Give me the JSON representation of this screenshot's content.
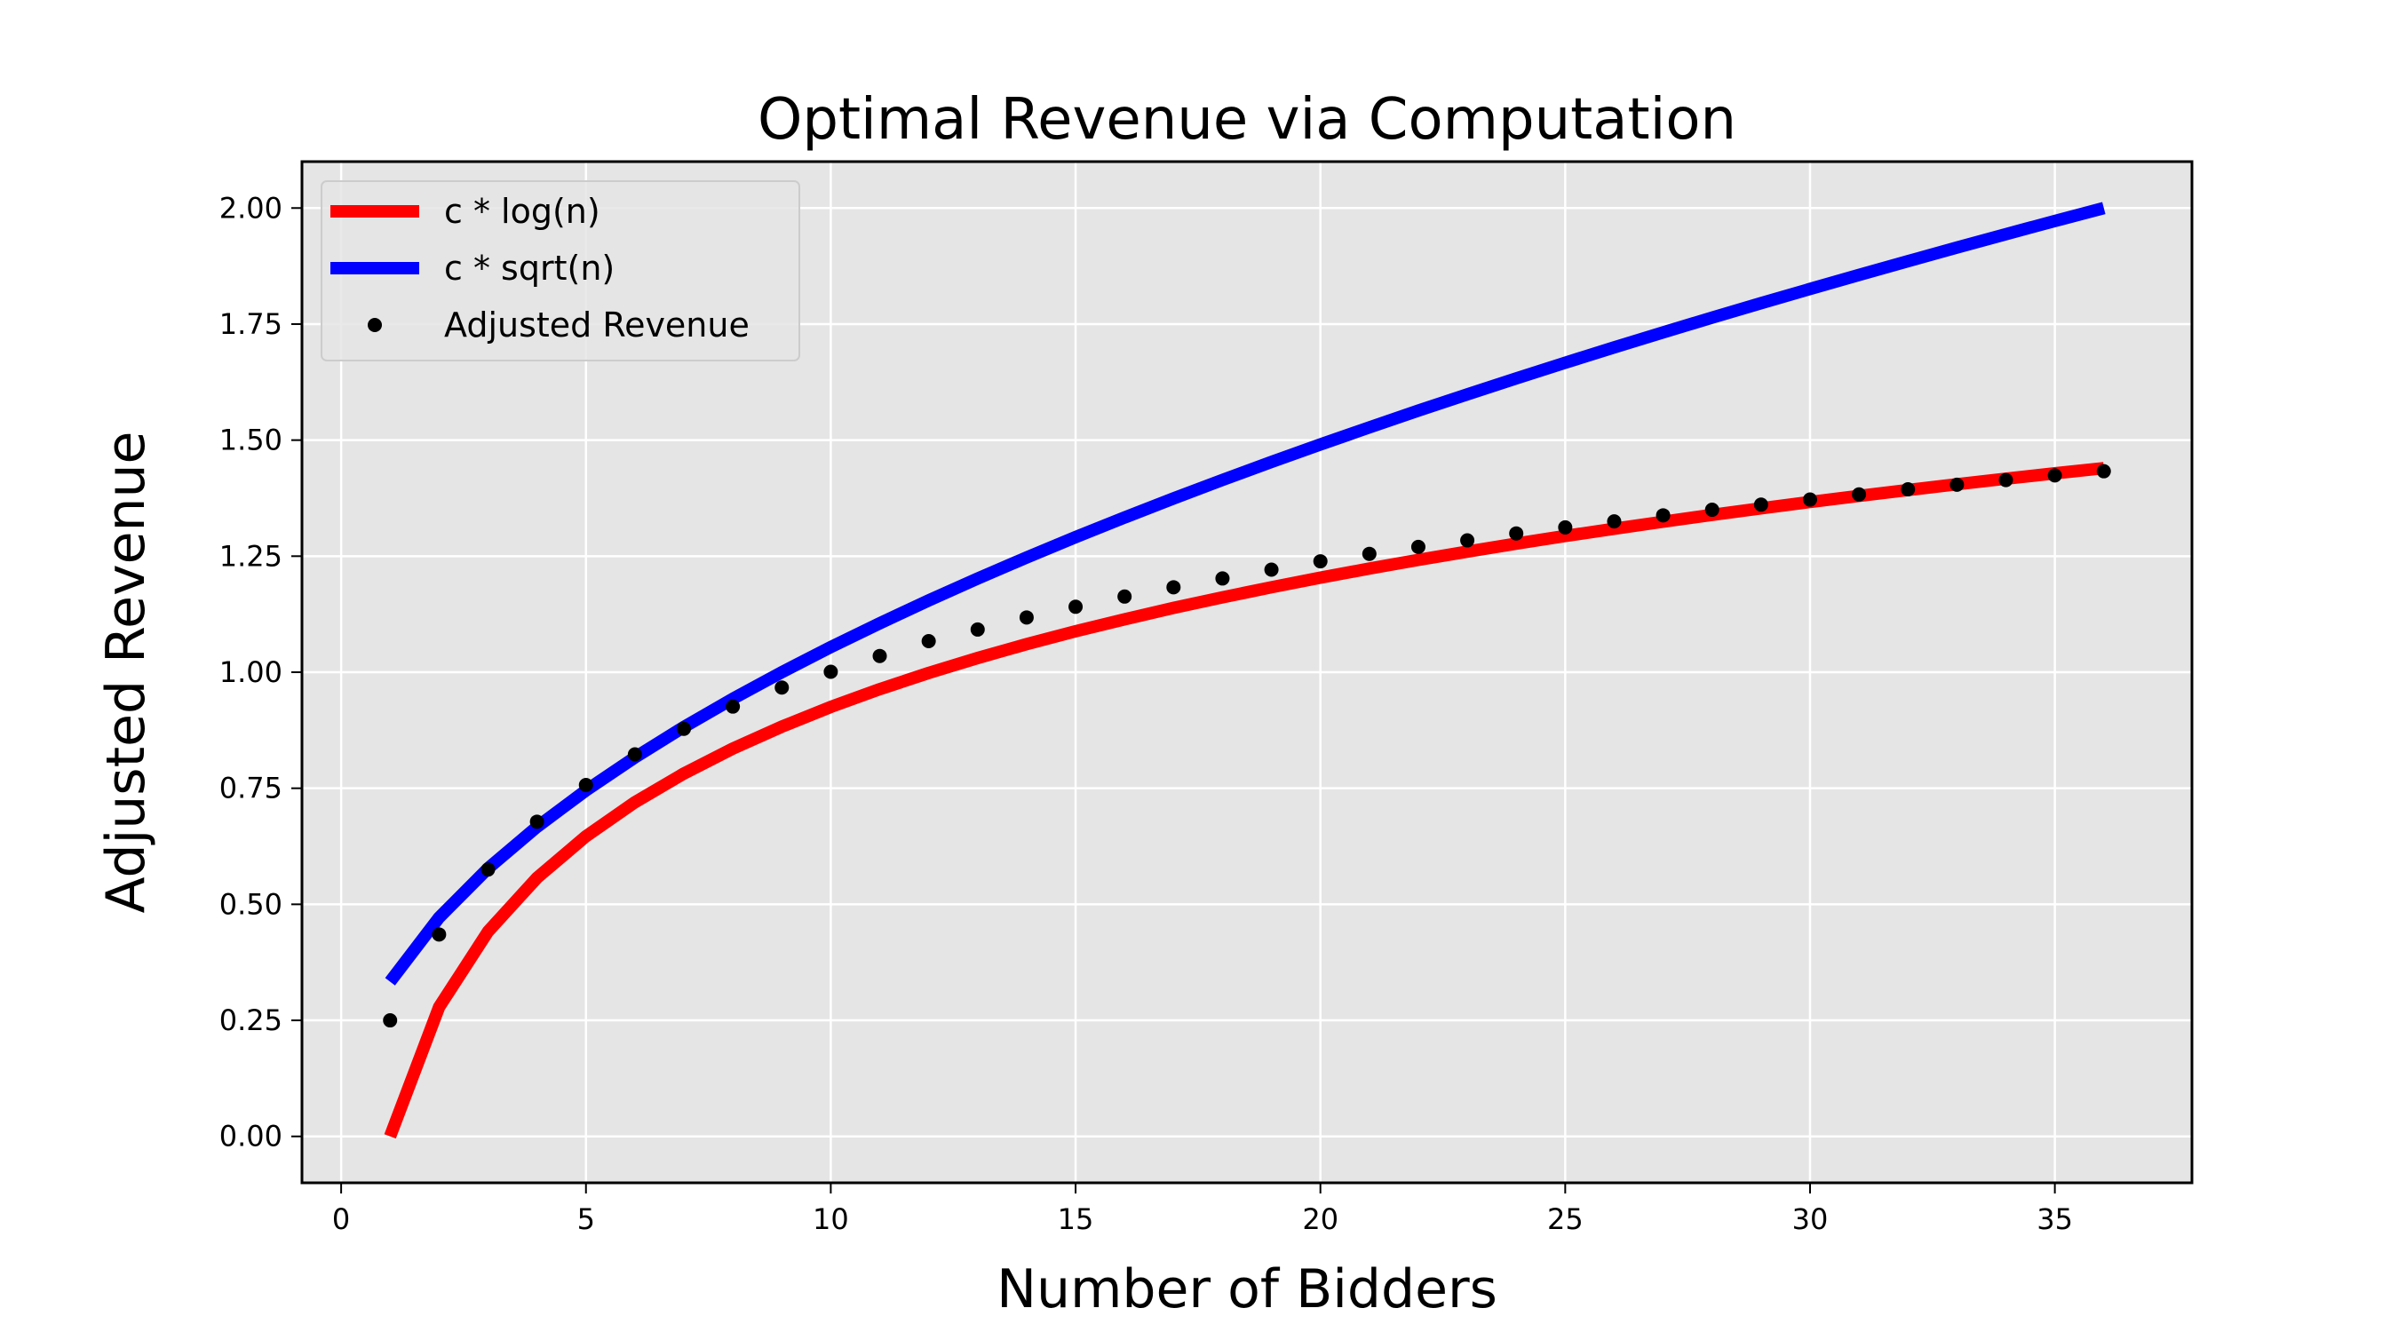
{
  "chart_data": {
    "type": "line",
    "title": "Optimal Revenue via Computation",
    "xlabel": "Number of Bidders",
    "ylabel": "Adjusted Revenue",
    "xlim": [
      -0.8,
      37.8
    ],
    "ylim": [
      -0.1,
      2.1
    ],
    "xticks": [
      0,
      5,
      10,
      15,
      20,
      25,
      30,
      35
    ],
    "yticks": [
      0.0,
      0.25,
      0.5,
      0.75,
      1.0,
      1.25,
      1.5,
      1.75,
      2.0
    ],
    "ytick_labels": [
      "0.00",
      "0.25",
      "0.50",
      "0.75",
      "1.00",
      "1.25",
      "1.50",
      "1.75",
      "2.00"
    ],
    "grid": true,
    "legend_position": "top-left",
    "x": [
      1,
      2,
      3,
      4,
      5,
      6,
      7,
      8,
      9,
      10,
      11,
      12,
      13,
      14,
      15,
      16,
      17,
      18,
      19,
      20,
      21,
      22,
      23,
      24,
      25,
      26,
      27,
      28,
      29,
      30,
      31,
      32,
      33,
      34,
      35,
      36
    ],
    "series": [
      {
        "name": "c * log(n)",
        "kind": "line",
        "color": "#ff0000",
        "values": [
          0.0,
          0.2785,
          0.4414,
          0.557,
          0.6467,
          0.7199,
          0.7818,
          0.8355,
          0.8828,
          0.9252,
          0.9635,
          0.9985,
          1.0307,
          1.0604,
          1.0881,
          1.1141,
          1.1385,
          1.1613,
          1.183,
          1.2037,
          1.2232,
          1.242,
          1.2597,
          1.277,
          1.2934,
          1.3092,
          1.3243,
          1.339,
          1.3531,
          1.3667,
          1.3799,
          1.3926,
          1.4049,
          1.4169,
          1.4285,
          1.4397
        ]
      },
      {
        "name": "c * sqrt(n)",
        "kind": "line",
        "color": "#0000ff",
        "values": [
          0.3333,
          0.4714,
          0.5774,
          0.6667,
          0.7454,
          0.8165,
          0.8819,
          0.9428,
          1.0,
          1.0541,
          1.1055,
          1.1547,
          1.2019,
          1.2472,
          1.291,
          1.3333,
          1.3744,
          1.4142,
          1.453,
          1.4907,
          1.5275,
          1.5635,
          1.5986,
          1.633,
          1.6667,
          1.6997,
          1.7321,
          1.7638,
          1.7951,
          1.8257,
          1.8559,
          1.8856,
          1.9149,
          1.9437,
          1.972,
          2.0
        ]
      },
      {
        "name": "Adjusted Revenue",
        "kind": "scatter",
        "color": "#000000",
        "values": [
          0.25,
          0.435,
          0.575,
          0.678,
          0.757,
          0.823,
          0.878,
          0.926,
          0.967,
          1.001,
          1.035,
          1.067,
          1.092,
          1.118,
          1.141,
          1.163,
          1.183,
          1.202,
          1.221,
          1.239,
          1.255,
          1.27,
          1.284,
          1.299,
          1.312,
          1.325,
          1.338,
          1.35,
          1.361,
          1.372,
          1.383,
          1.394,
          1.404,
          1.414,
          1.424,
          1.433
        ]
      }
    ]
  }
}
